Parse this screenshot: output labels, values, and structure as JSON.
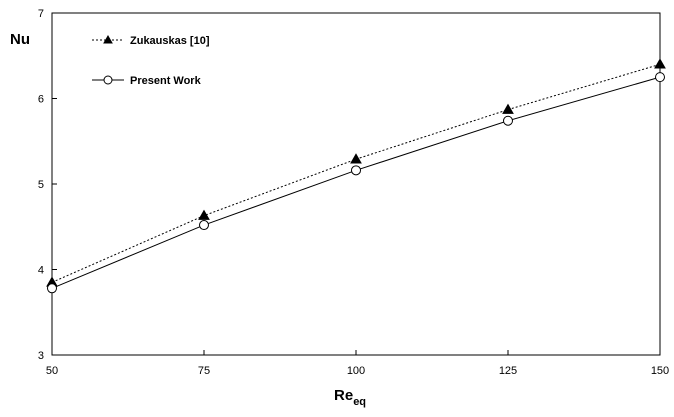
{
  "chart_data": {
    "type": "line",
    "xlabel": "Re",
    "xlabel_sub": "eq",
    "ylabel": "Nu",
    "xlim": [
      50,
      150
    ],
    "ylim": [
      3,
      7
    ],
    "x_ticks": [
      "50",
      "75",
      "100",
      "125",
      "150"
    ],
    "y_ticks": [
      "3",
      "4",
      "5",
      "6",
      "7"
    ],
    "grid": false,
    "legend_position": "top-left",
    "series": [
      {
        "name": "Zukauskas  [10]",
        "line_style": "dotted",
        "marker": "filled-triangle",
        "x": [
          50,
          75,
          100,
          125,
          150
        ],
        "y": [
          3.85,
          4.63,
          5.29,
          5.87,
          6.4
        ]
      },
      {
        "name": "Present Work",
        "line_style": "solid",
        "marker": "open-circle",
        "x": [
          50,
          75,
          100,
          125,
          150
        ],
        "y": [
          3.78,
          4.52,
          5.16,
          5.74,
          6.25
        ]
      }
    ]
  }
}
